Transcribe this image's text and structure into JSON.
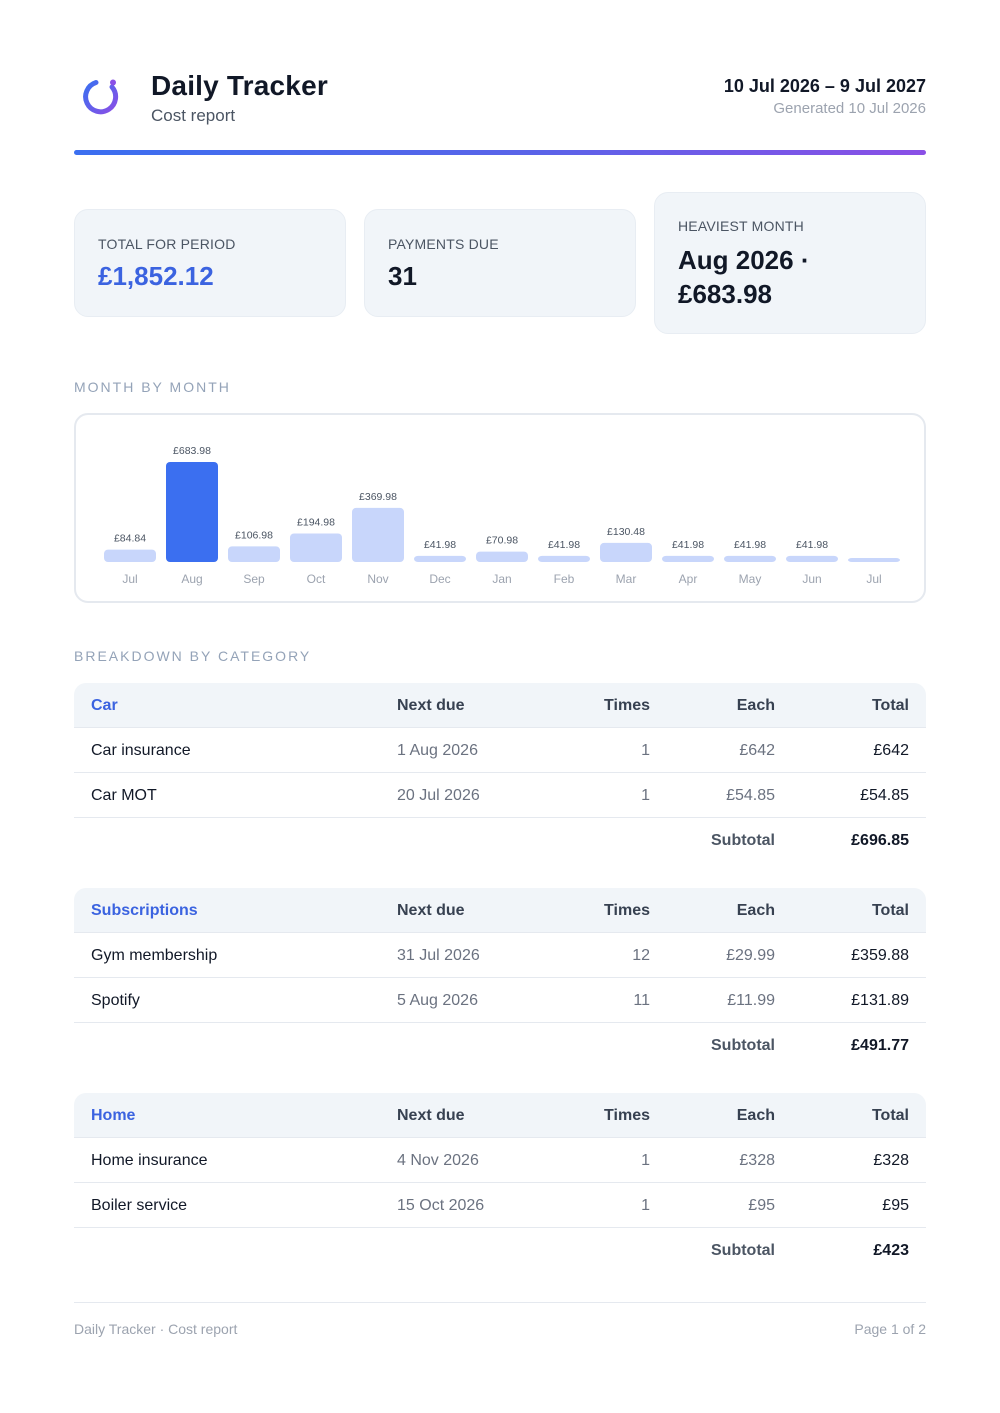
{
  "header": {
    "app_title": "Daily Tracker",
    "app_subtitle": "Cost report",
    "period": "10 Jul 2026 – 9 Jul 2027",
    "generated": "Generated 10 Jul 2026",
    "accent_colors": [
      "#3b6ff0",
      "#8a4fe6"
    ],
    "logo_icon": "ring-logo-icon"
  },
  "summary": {
    "total": {
      "label": "TOTAL FOR PERIOD",
      "value": "£1,852.12"
    },
    "payments": {
      "label": "PAYMENTS DUE",
      "value": "31"
    },
    "heaviest": {
      "label": "HEAVIEST MONTH",
      "value_line1": "Aug 2026 ·",
      "value_line2": "£683.98"
    }
  },
  "sections": {
    "month_by_month": "MONTH BY MONTH",
    "breakdown": "BREAKDOWN BY CATEGORY"
  },
  "chart_data": {
    "type": "bar",
    "categories": [
      "Jul",
      "Aug",
      "Sep",
      "Oct",
      "Nov",
      "Dec",
      "Jan",
      "Feb",
      "Mar",
      "Apr",
      "May",
      "Jun",
      "Jul"
    ],
    "values": [
      84.84,
      683.98,
      106.98,
      194.98,
      369.98,
      41.98,
      70.98,
      41.98,
      130.48,
      41.98,
      41.98,
      41.98,
      0
    ],
    "value_labels": [
      "£84.84",
      "£683.98",
      "£106.98",
      "£194.98",
      "£369.98",
      "£41.98",
      "£70.98",
      "£41.98",
      "£130.48",
      "£41.98",
      "£41.98",
      "£41.98",
      ""
    ],
    "highlight_index": 1,
    "bar_color": "#c8d6fb",
    "highlight_color": "#3b6ff0",
    "grid": false
  },
  "tables": [
    {
      "category": "Car",
      "columns": [
        "Next due",
        "Times",
        "Each",
        "Total"
      ],
      "rows": [
        {
          "name": "Car insurance",
          "due": "1 Aug 2026",
          "times": "1",
          "each": "£642",
          "total": "£642"
        },
        {
          "name": "Car MOT",
          "due": "20 Jul 2026",
          "times": "1",
          "each": "£54.85",
          "total": "£54.85"
        }
      ],
      "subtotal_label": "Subtotal",
      "subtotal": "£696.85"
    },
    {
      "category": "Subscriptions",
      "columns": [
        "Next due",
        "Times",
        "Each",
        "Total"
      ],
      "rows": [
        {
          "name": "Gym membership",
          "due": "31 Jul 2026",
          "times": "12",
          "each": "£29.99",
          "total": "£359.88"
        },
        {
          "name": "Spotify",
          "due": "5 Aug 2026",
          "times": "11",
          "each": "£11.99",
          "total": "£131.89"
        }
      ],
      "subtotal_label": "Subtotal",
      "subtotal": "£491.77"
    },
    {
      "category": "Home",
      "columns": [
        "Next due",
        "Times",
        "Each",
        "Total"
      ],
      "rows": [
        {
          "name": "Home insurance",
          "due": "4 Nov 2026",
          "times": "1",
          "each": "£328",
          "total": "£328"
        },
        {
          "name": "Boiler service",
          "due": "15 Oct 2026",
          "times": "1",
          "each": "£95",
          "total": "£95"
        }
      ],
      "subtotal_label": "Subtotal",
      "subtotal": "£423"
    }
  ],
  "footer": {
    "left": "Daily Tracker · Cost report",
    "right": "Page 1 of 2"
  }
}
